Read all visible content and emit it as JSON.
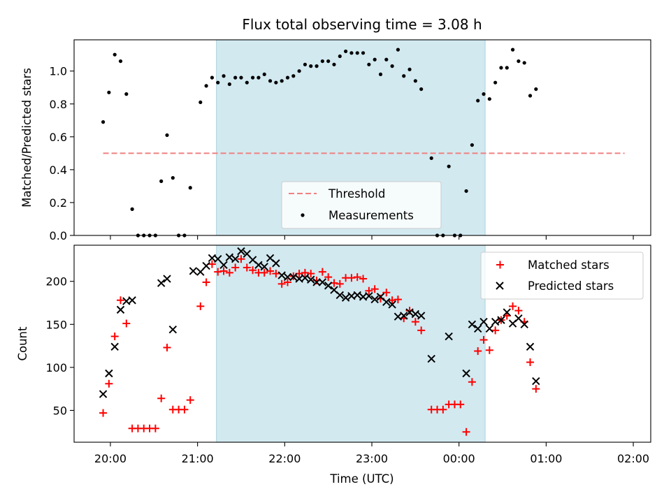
{
  "title": "Flux total observing time = 3.08 h",
  "xlabel": "Time (UTC)",
  "xtick_labels": [
    "20:00",
    "21:00",
    "22:00",
    "23:00",
    "00:00",
    "01:00",
    "02:00"
  ],
  "colors": {
    "shade": "#d2e9f0",
    "threshold": "#f08080",
    "measurements": "#000000",
    "matched": "#ff0000",
    "predicted": "#000000"
  },
  "chart_data": [
    {
      "type": "scatter",
      "ylabel": "Matched/Predicted stars",
      "xlim": [
        "19:35",
        "02:12"
      ],
      "ylim": [
        0,
        1.19
      ],
      "yticks": [
        "0.0",
        "0.2",
        "0.4",
        "0.6",
        "0.8",
        "1.0"
      ],
      "shaded_region": [
        "21:13",
        "00:18"
      ],
      "legend": {
        "placement": "lower center",
        "entries": [
          "Threshold",
          "Measurements"
        ]
      },
      "threshold": {
        "name": "Threshold",
        "y": 0.5,
        "x_range": [
          "19:55",
          "01:54"
        ]
      },
      "series": [
        {
          "name": "Measurements",
          "points": [
            [
              "19:55",
              0.69
            ],
            [
              "19:59",
              0.87
            ],
            [
              "20:03",
              1.1
            ],
            [
              "20:07",
              1.06
            ],
            [
              "20:11",
              0.86
            ],
            [
              "20:15",
              0.16
            ],
            [
              "20:19",
              0.0
            ],
            [
              "20:23",
              0.0
            ],
            [
              "20:27",
              0.0
            ],
            [
              "20:31",
              0.0
            ],
            [
              "20:35",
              0.33
            ],
            [
              "20:39",
              0.61
            ],
            [
              "20:43",
              0.35
            ],
            [
              "20:47",
              0.0
            ],
            [
              "20:51",
              0.0
            ],
            [
              "20:55",
              0.29
            ],
            [
              "21:02",
              0.81
            ],
            [
              "21:06",
              0.91
            ],
            [
              "21:10",
              0.96
            ],
            [
              "21:14",
              0.93
            ],
            [
              "21:18",
              0.97
            ],
            [
              "21:22",
              0.92
            ],
            [
              "21:26",
              0.96
            ],
            [
              "21:30",
              0.96
            ],
            [
              "21:34",
              0.93
            ],
            [
              "21:38",
              0.96
            ],
            [
              "21:42",
              0.96
            ],
            [
              "21:46",
              0.98
            ],
            [
              "21:50",
              0.94
            ],
            [
              "21:54",
              0.93
            ],
            [
              "21:58",
              0.94
            ],
            [
              "22:02",
              0.96
            ],
            [
              "22:06",
              0.97
            ],
            [
              "22:10",
              1.0
            ],
            [
              "22:14",
              1.04
            ],
            [
              "22:18",
              1.03
            ],
            [
              "22:22",
              1.03
            ],
            [
              "22:26",
              1.06
            ],
            [
              "22:30",
              1.06
            ],
            [
              "22:34",
              1.04
            ],
            [
              "22:38",
              1.09
            ],
            [
              "22:42",
              1.12
            ],
            [
              "22:46",
              1.11
            ],
            [
              "22:50",
              1.11
            ],
            [
              "22:54",
              1.11
            ],
            [
              "22:58",
              1.04
            ],
            [
              "23:02",
              1.07
            ],
            [
              "23:06",
              0.98
            ],
            [
              "23:10",
              1.07
            ],
            [
              "23:14",
              1.03
            ],
            [
              "23:18",
              1.13
            ],
            [
              "23:22",
              0.97
            ],
            [
              "23:26",
              1.01
            ],
            [
              "23:30",
              0.94
            ],
            [
              "23:34",
              0.89
            ],
            [
              "23:41",
              0.47
            ],
            [
              "23:45",
              0.0
            ],
            [
              "23:49",
              0.0
            ],
            [
              "23:53",
              0.42
            ],
            [
              "23:57",
              0.0
            ],
            [
              "00:01",
              0.0
            ],
            [
              "00:05",
              0.27
            ],
            [
              "00:09",
              0.55
            ],
            [
              "00:13",
              0.82
            ],
            [
              "00:17",
              0.86
            ],
            [
              "00:21",
              0.83
            ],
            [
              "00:25",
              0.93
            ],
            [
              "00:29",
              1.02
            ],
            [
              "00:33",
              1.02
            ],
            [
              "00:37",
              1.13
            ],
            [
              "00:41",
              1.06
            ],
            [
              "00:45",
              1.05
            ],
            [
              "00:49",
              0.85
            ],
            [
              "00:53",
              0.89
            ]
          ]
        }
      ]
    },
    {
      "type": "scatter",
      "ylabel": "Count",
      "xlim": [
        "19:35",
        "02:12"
      ],
      "ylim": [
        13,
        242
      ],
      "yticks": [
        "50",
        "100",
        "150",
        "200"
      ],
      "shaded_region": [
        "21:13",
        "00:18"
      ],
      "legend": {
        "placement": "upper right",
        "entries": [
          "Matched stars",
          "Predicted stars"
        ]
      },
      "series": [
        {
          "name": "Matched stars",
          "marker": "+",
          "points": [
            [
              "19:55",
              47
            ],
            [
              "19:59",
              81
            ],
            [
              "20:03",
              136
            ],
            [
              "20:07",
              178
            ],
            [
              "20:11",
              151
            ],
            [
              "20:15",
              29
            ],
            [
              "20:19",
              29
            ],
            [
              "20:23",
              29
            ],
            [
              "20:27",
              29
            ],
            [
              "20:31",
              29
            ],
            [
              "20:35",
              64
            ],
            [
              "20:39",
              123
            ],
            [
              "20:43",
              51
            ],
            [
              "20:47",
              51
            ],
            [
              "20:51",
              51
            ],
            [
              "20:55",
              62
            ],
            [
              "21:02",
              171
            ],
            [
              "21:06",
              199
            ],
            [
              "21:10",
              220
            ],
            [
              "21:14",
              211
            ],
            [
              "21:18",
              212
            ],
            [
              "21:22",
              210
            ],
            [
              "21:26",
              216
            ],
            [
              "21:30",
              226
            ],
            [
              "21:34",
              216
            ],
            [
              "21:38",
              213
            ],
            [
              "21:42",
              210
            ],
            [
              "21:46",
              210
            ],
            [
              "21:50",
              212
            ],
            [
              "21:54",
              209
            ],
            [
              "21:58",
              197
            ],
            [
              "22:02",
              199
            ],
            [
              "22:06",
              206
            ],
            [
              "22:10",
              209
            ],
            [
              "22:14",
              210
            ],
            [
              "22:18",
              209
            ],
            [
              "22:22",
              201
            ],
            [
              "22:26",
              211
            ],
            [
              "22:30",
              205
            ],
            [
              "22:34",
              198
            ],
            [
              "22:38",
              197
            ],
            [
              "22:42",
              204
            ],
            [
              "22:46",
              204
            ],
            [
              "22:50",
              205
            ],
            [
              "22:54",
              203
            ],
            [
              "22:58",
              189
            ],
            [
              "23:02",
              191
            ],
            [
              "23:06",
              180
            ],
            [
              "23:10",
              187
            ],
            [
              "23:14",
              178
            ],
            [
              "23:18",
              179
            ],
            [
              "23:22",
              157
            ],
            [
              "23:26",
              166
            ],
            [
              "23:30",
              153
            ],
            [
              "23:34",
              143
            ],
            [
              "23:41",
              51
            ],
            [
              "23:45",
              51
            ],
            [
              "23:49",
              51
            ],
            [
              "23:53",
              57
            ],
            [
              "23:57",
              57
            ],
            [
              "00:01",
              57
            ],
            [
              "00:05",
              25
            ],
            [
              "00:09",
              83
            ],
            [
              "00:13",
              119
            ],
            [
              "00:17",
              132
            ],
            [
              "00:21",
              120
            ],
            [
              "00:25",
              143
            ],
            [
              "00:29",
              155
            ],
            [
              "00:33",
              160
            ],
            [
              "00:37",
              171
            ],
            [
              "00:41",
              166
            ],
            [
              "00:45",
              153
            ],
            [
              "00:49",
              106
            ],
            [
              "00:53",
              75
            ]
          ]
        },
        {
          "name": "Predicted stars",
          "marker": "x",
          "points": [
            [
              "19:55",
              69
            ],
            [
              "19:59",
              93
            ],
            [
              "20:03",
              124
            ],
            [
              "20:07",
              167
            ],
            [
              "20:11",
              177
            ],
            [
              "20:15",
              178
            ],
            [
              "20:35",
              198
            ],
            [
              "20:39",
              203
            ],
            [
              "20:43",
              144
            ],
            [
              "20:57",
              212
            ],
            [
              "21:02",
              211
            ],
            [
              "21:06",
              218
            ],
            [
              "21:10",
              227
            ],
            [
              "21:14",
              226
            ],
            [
              "21:18",
              219
            ],
            [
              "21:22",
              228
            ],
            [
              "21:26",
              226
            ],
            [
              "21:30",
              235
            ],
            [
              "21:34",
              232
            ],
            [
              "21:38",
              225
            ],
            [
              "21:42",
              219
            ],
            [
              "21:46",
              217
            ],
            [
              "21:50",
              227
            ],
            [
              "21:54",
              221
            ],
            [
              "21:58",
              207
            ],
            [
              "22:02",
              205
            ],
            [
              "22:06",
              205
            ],
            [
              "22:10",
              203
            ],
            [
              "22:14",
              204
            ],
            [
              "22:18",
              202
            ],
            [
              "22:22",
              199
            ],
            [
              "22:26",
              199
            ],
            [
              "22:30",
              195
            ],
            [
              "22:34",
              190
            ],
            [
              "22:38",
              184
            ],
            [
              "22:42",
              181
            ],
            [
              "22:46",
              183
            ],
            [
              "22:50",
              184
            ],
            [
              "22:54",
              182
            ],
            [
              "22:58",
              183
            ],
            [
              "23:02",
              179
            ],
            [
              "23:06",
              182
            ],
            [
              "23:10",
              176
            ],
            [
              "23:14",
              173
            ],
            [
              "23:18",
              159
            ],
            [
              "23:22",
              160
            ],
            [
              "23:26",
              164
            ],
            [
              "23:30",
              162
            ],
            [
              "23:34",
              160
            ],
            [
              "23:41",
              110
            ],
            [
              "23:53",
              136
            ],
            [
              "00:05",
              93
            ],
            [
              "00:09",
              150
            ],
            [
              "00:13",
              145
            ],
            [
              "00:17",
              153
            ],
            [
              "00:21",
              145
            ],
            [
              "00:25",
              153
            ],
            [
              "00:29",
              155
            ],
            [
              "00:33",
              164
            ],
            [
              "00:37",
              151
            ],
            [
              "00:41",
              157
            ],
            [
              "00:45",
              150
            ],
            [
              "00:49",
              124
            ],
            [
              "00:53",
              84
            ]
          ]
        }
      ]
    }
  ]
}
